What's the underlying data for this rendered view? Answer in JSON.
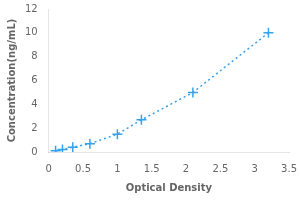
{
  "chart_data": {
    "type": "line",
    "xlabel": "Optical Density",
    "ylabel": "Concentration(ng/mL)",
    "x": [
      0.1,
      0.2,
      0.35,
      0.6,
      1.0,
      1.35,
      2.1,
      3.2
    ],
    "values": [
      0.1,
      0.2,
      0.4,
      0.7,
      1.5,
      2.7,
      5.0,
      10.0
    ],
    "xlim": [
      0,
      3.5
    ],
    "ylim": [
      0,
      12
    ],
    "xticks": [
      0,
      0.5,
      1,
      1.5,
      2,
      2.5,
      3,
      3.5
    ],
    "yticks": [
      0,
      2,
      4,
      6,
      8,
      10,
      12
    ],
    "grid": false,
    "marker": "plus",
    "line_style": "dotted"
  }
}
